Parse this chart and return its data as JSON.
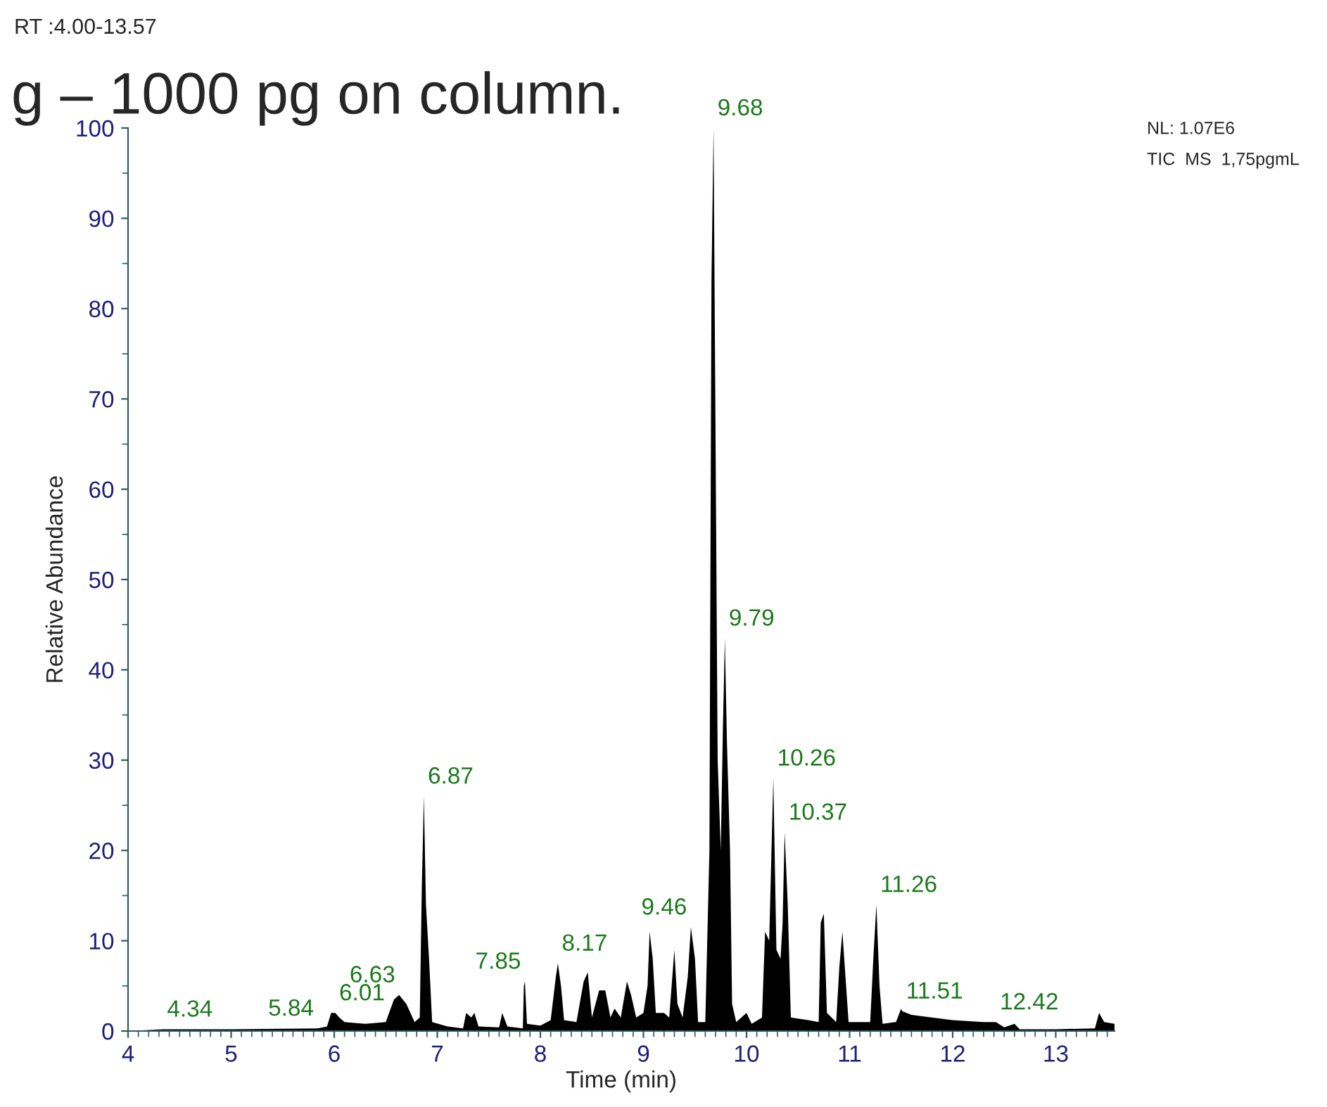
{
  "chart_data": {
    "type": "area",
    "title": "g – 1000 pg on column.",
    "xlabel": "Time (min)",
    "ylabel": "Relative Abundance",
    "annotations": [
      "RT :4.00-13.57",
      "NL: 1.07E6",
      "TIC  MS  1,75pgmL",
      {
        "text": "4.34",
        "x": 4.34,
        "y": 0.2
      },
      {
        "text": "5.84",
        "x": 5.84,
        "y": 0.3
      },
      {
        "text": "6.01",
        "x": 6.01,
        "y": 2
      },
      {
        "text": "6.63",
        "x": 6.63,
        "y": 4
      },
      {
        "text": "6.87",
        "x": 6.87,
        "y": 26
      },
      {
        "text": "7.85",
        "x": 7.85,
        "y": 5.5
      },
      {
        "text": "8.17",
        "x": 8.17,
        "y": 7.5
      },
      {
        "text": "9.46",
        "x": 9.46,
        "y": 11.5
      },
      {
        "text": "9.68",
        "x": 9.68,
        "y": 100
      },
      {
        "text": "9.79",
        "x": 9.79,
        "y": 43.5
      },
      {
        "text": "10.26",
        "x": 10.26,
        "y": 28
      },
      {
        "text": "10.37",
        "x": 10.37,
        "y": 22
      },
      {
        "text": "11.26",
        "x": 11.26,
        "y": 14
      },
      {
        "text": "11.51",
        "x": 11.51,
        "y": 2.2
      },
      {
        "text": "12.42",
        "x": 12.42,
        "y": 1
      }
    ],
    "xlim": [
      4,
      13.57
    ],
    "ylim": [
      0,
      100
    ],
    "xticks": [
      4,
      5,
      6,
      7,
      8,
      9,
      10,
      11,
      12,
      13
    ],
    "yticks": [
      0,
      10,
      20,
      30,
      40,
      50,
      60,
      70,
      80,
      90,
      100
    ],
    "grid": false,
    "legend": false,
    "series": [
      {
        "color": "#000000",
        "x": [
          4.0,
          4.34,
          5.0,
          5.84,
          5.93,
          5.97,
          6.01,
          6.05,
          6.1,
          6.3,
          6.5,
          6.58,
          6.63,
          6.7,
          6.78,
          6.83,
          6.85,
          6.87,
          6.89,
          6.92,
          6.95,
          7.1,
          7.25,
          7.28,
          7.33,
          7.36,
          7.4,
          7.6,
          7.63,
          7.68,
          7.83,
          7.84,
          7.85,
          7.87,
          8.0,
          8.1,
          8.15,
          8.17,
          8.2,
          8.23,
          8.35,
          8.42,
          8.46,
          8.5,
          8.57,
          8.63,
          8.68,
          8.72,
          8.78,
          8.84,
          8.88,
          8.93,
          9.0,
          9.04,
          9.06,
          9.09,
          9.12,
          9.2,
          9.25,
          9.3,
          9.33,
          9.38,
          9.43,
          9.46,
          9.5,
          9.53,
          9.6,
          9.64,
          9.66,
          9.68,
          9.7,
          9.72,
          9.75,
          9.77,
          9.79,
          9.81,
          9.84,
          9.86,
          9.9,
          10.0,
          10.05,
          10.15,
          10.18,
          10.22,
          10.26,
          10.29,
          10.33,
          10.35,
          10.37,
          10.4,
          10.43,
          10.6,
          10.7,
          10.72,
          10.75,
          10.78,
          10.87,
          10.9,
          10.93,
          10.96,
          10.99,
          11.2,
          11.23,
          11.26,
          11.29,
          11.32,
          11.45,
          11.5,
          11.51,
          11.6,
          11.8,
          12.0,
          12.3,
          12.42,
          12.5,
          12.6,
          12.65,
          13.0,
          13.38,
          13.42,
          13.47,
          13.57
        ],
        "values": [
          0,
          0.2,
          0.2,
          0.3,
          0.5,
          2,
          2,
          1.5,
          1,
          0.8,
          1,
          3.5,
          4,
          3,
          1,
          1.5,
          16,
          26,
          14,
          8,
          1,
          0.5,
          0.3,
          2,
          1.5,
          2,
          0.5,
          0.4,
          2,
          0.5,
          0.3,
          5,
          5.5,
          0.8,
          0.6,
          1.2,
          6,
          7.5,
          5,
          1.2,
          1,
          5.5,
          6.5,
          1.5,
          4.5,
          4.5,
          1.5,
          2.5,
          1.5,
          5.5,
          4,
          1.5,
          2,
          5,
          11,
          8,
          2,
          2,
          1.5,
          9,
          3,
          1.5,
          6,
          11.5,
          8,
          1,
          1,
          20,
          83,
          100,
          65,
          30,
          20,
          33,
          43.5,
          32,
          20,
          3,
          1,
          2,
          0.8,
          1.5,
          11,
          10,
          28,
          9,
          8,
          12,
          22,
          14,
          1.5,
          1.2,
          1,
          12,
          13,
          2,
          1,
          7,
          11,
          6,
          1,
          1,
          8,
          14,
          5,
          0.8,
          1,
          2.5,
          2.2,
          1.8,
          1.5,
          1.2,
          1,
          1,
          0.4,
          0.8,
          0.2,
          0.2,
          0.3,
          2,
          1,
          0.8
        ]
      }
    ]
  }
}
